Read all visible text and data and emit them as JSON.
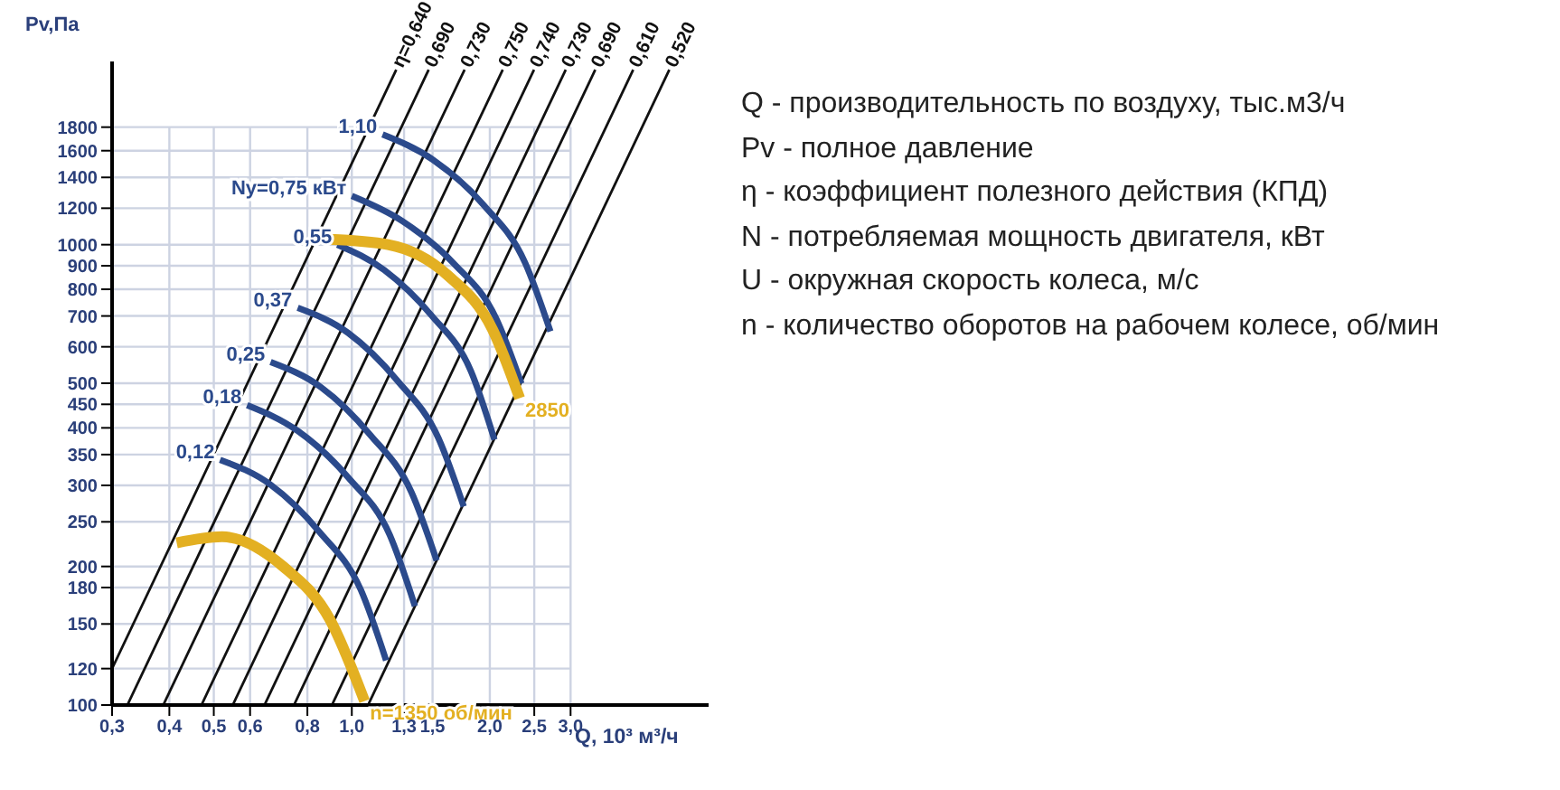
{
  "chart_data": {
    "type": "line",
    "xlabel": "Q, 10³ м³/ч",
    "ylabel": "Pv,Па",
    "log": "xy",
    "grid": true,
    "marker": "none",
    "xlim": [
      0.3,
      6
    ],
    "ylim": [
      100,
      2500
    ],
    "xticks": [
      {
        "value": 0.3,
        "label": "0,3"
      },
      {
        "value": 0.4,
        "label": "0,4"
      },
      {
        "value": 0.5,
        "label": "0,5"
      },
      {
        "value": 0.6,
        "label": "0,6"
      },
      {
        "value": 0.8,
        "label": "0,8"
      },
      {
        "value": 1.0,
        "label": "1,0"
      },
      {
        "value": 1.3,
        "label": "1,3"
      },
      {
        "value": 1.5,
        "label": "1,5"
      },
      {
        "value": 2.0,
        "label": "2,0"
      },
      {
        "value": 2.5,
        "label": "2,5"
      },
      {
        "value": 3.0,
        "label": "3,0"
      }
    ],
    "yticks": [
      100,
      120,
      150,
      180,
      200,
      250,
      300,
      350,
      400,
      450,
      500,
      600,
      700,
      800,
      900,
      1000,
      1200,
      1400,
      1600,
      1800
    ],
    "series": [
      {
        "name": "η=0,640",
        "color": "#111111",
        "x": [
          0.3,
          1.25
        ],
        "values": [
          120,
          2400
        ]
      },
      {
        "name": "0,690",
        "color": "#111111",
        "x": [
          0.324,
          1.471
        ],
        "values": [
          100,
          2400
        ]
      },
      {
        "name": "0,730",
        "color": "#111111",
        "x": [
          0.388,
          1.762
        ],
        "values": [
          100,
          2400
        ]
      },
      {
        "name": "0,750",
        "color": "#111111",
        "x": [
          0.47,
          2.134
        ],
        "values": [
          100,
          2400
        ]
      },
      {
        "name": "0,740",
        "color": "#111111",
        "x": [
          0.55,
          2.497
        ],
        "values": [
          100,
          2400
        ]
      },
      {
        "name": "0,730",
        "color": "#111111",
        "x": [
          0.645,
          2.928
        ],
        "values": [
          100,
          2400
        ]
      },
      {
        "name": "0,690",
        "color": "#111111",
        "x": [
          0.748,
          3.396
        ],
        "values": [
          100,
          2400
        ]
      },
      {
        "name": "0,610",
        "color": "#111111",
        "x": [
          0.905,
          4.109
        ],
        "values": [
          100,
          2400
        ]
      },
      {
        "name": "0,520",
        "color": "#111111",
        "x": [
          1.085,
          4.926
        ],
        "values": [
          100,
          2400
        ]
      },
      {
        "color": "#2b4a8c",
        "x": [
          1.167,
          1.504,
          1.938,
          2.387,
          2.711
        ],
        "values": [
          1735,
          1529,
          1220,
          914,
          648
        ]
      },
      {
        "color": "#2b4a8c",
        "x": [
          1.0,
          1.289,
          1.662,
          2.065,
          2.344
        ],
        "values": [
          1276,
          1125,
          914,
          691,
          499
        ]
      },
      {
        "color": "#2b4a8c",
        "x": [
          0.93,
          1.177,
          1.49,
          1.819,
          2.047
        ],
        "values": [
          1000,
          881,
          703,
          531,
          377
        ]
      },
      {
        "color": "#2b4a8c",
        "x": [
          0.762,
          0.982,
          1.254,
          1.545,
          1.754
        ],
        "values": [
          729,
          643,
          508,
          380,
          270
        ]
      },
      {
        "color": "#2b4a8c",
        "x": [
          0.665,
          0.857,
          1.095,
          1.349,
          1.531
        ],
        "values": [
          556,
          490,
          387,
          290,
          206
        ]
      },
      {
        "color": "#2b4a8c",
        "x": [
          0.591,
          0.762,
          0.982,
          1.21,
          1.373
        ],
        "values": [
          448,
          394,
          312,
          234,
          164
        ]
      },
      {
        "color": "#2b4a8c",
        "x": [
          0.516,
          0.665,
          0.849,
          1.046,
          1.188
        ],
        "values": [
          341,
          301,
          238,
          178,
          125
        ]
      },
      {
        "color": "#e3b022",
        "x": [
          0.897,
          1.199,
          1.618,
          2.028,
          2.323
        ],
        "values": [
          1027,
          1000,
          858,
          654,
          464
        ]
      },
      {
        "color": "#e3b022",
        "x": [
          0.415,
          0.521,
          0.708,
          0.897,
          1.066
        ],
        "values": [
          225,
          232,
          200,
          153,
          102
        ]
      }
    ],
    "annotations": [
      {
        "text": "1,10",
        "x": 1.167,
        "y": 1735
      },
      {
        "text": "Ny=0,75 кВт",
        "x": 1.0,
        "y": 1276
      },
      {
        "text": "0,55",
        "x": 0.93,
        "y": 1000
      },
      {
        "text": "0,37",
        "x": 0.762,
        "y": 729
      },
      {
        "text": "0,25",
        "x": 0.665,
        "y": 556
      },
      {
        "text": "0,18",
        "x": 0.591,
        "y": 448
      },
      {
        "text": "0,12",
        "x": 0.516,
        "y": 341
      },
      {
        "text": "2850",
        "x": 2.323,
        "y": 464
      },
      {
        "text": "n=1350 об/мин",
        "x": 1.066,
        "y": 102
      },
      "Q - производительность по воздуху, тыс.м3/ч",
      "Pv - полное давление",
      "η - коэффициент полезного действия (КПД)",
      "N - потребляемая мощность двигателя, кВт",
      "U - окружная скорость колеса, м/с",
      "n - количество оборотов на рабочем колесе, об/мин"
    ]
  }
}
